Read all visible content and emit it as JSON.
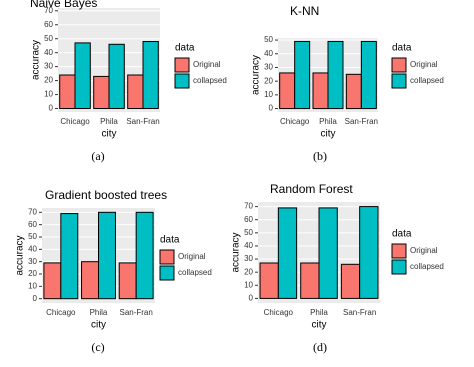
{
  "chart_data": [
    {
      "type": "bar",
      "title": "Naive Bayes",
      "x_label": "city",
      "y_label": "accuracy",
      "legend_title": "data",
      "caption": "(a)",
      "categories": [
        "Chicago",
        "Phila",
        "San-Fran"
      ],
      "series": [
        {
          "name": "Original",
          "color": "#F8766D",
          "values": [
            24,
            23,
            24
          ]
        },
        {
          "name": "collapsed",
          "color": "#00BFC4",
          "values": [
            47,
            46,
            48
          ]
        }
      ],
      "ylim": [
        -2.5,
        72
      ],
      "yticks": [
        0,
        10,
        20,
        30,
        40,
        50,
        60,
        70
      ],
      "grid": true,
      "legend": "right"
    },
    {
      "type": "bar",
      "title": "K-NN",
      "x_label": "city",
      "y_label": "accuracy",
      "legend_title": "data",
      "caption": "(b)",
      "categories": [
        "Chicago",
        "Phila",
        "San-Fran"
      ],
      "series": [
        {
          "name": "Original",
          "color": "#F8766D",
          "values": [
            26,
            26,
            25
          ]
        },
        {
          "name": "collapsed",
          "color": "#00BFC4",
          "values": [
            49,
            49,
            49
          ]
        }
      ],
      "ylim": [
        -2.5,
        51.5
      ],
      "yticks": [
        0,
        10,
        20,
        30,
        40,
        50
      ],
      "grid": true,
      "legend": "right"
    },
    {
      "type": "bar",
      "title": "Gradient boosted trees",
      "x_label": "city",
      "y_label": "accuracy",
      "legend_title": "data",
      "caption": "(c)",
      "categories": [
        "Chicago",
        "Phila",
        "San-Fran"
      ],
      "series": [
        {
          "name": "Original",
          "color": "#F8766D",
          "values": [
            29,
            30,
            29
          ]
        },
        {
          "name": "collapsed",
          "color": "#00BFC4",
          "values": [
            69,
            70,
            70
          ]
        }
      ],
      "ylim": [
        -3.5,
        73.5
      ],
      "yticks": [
        0,
        10,
        20,
        30,
        40,
        50,
        60,
        70
      ],
      "grid": true,
      "legend": "right"
    },
    {
      "type": "bar",
      "title": "Random Forest",
      "x_label": "city",
      "y_label": "accuracy",
      "legend_title": "data",
      "caption": "(d)",
      "categories": [
        "Chicago",
        "Phila",
        "San-Fran"
      ],
      "series": [
        {
          "name": "Original",
          "color": "#F8766D",
          "values": [
            27,
            27,
            26
          ]
        },
        {
          "name": "collapsed",
          "color": "#00BFC4",
          "values": [
            69,
            69,
            70
          ]
        }
      ],
      "ylim": [
        -3.5,
        73.5
      ],
      "yticks": [
        0,
        10,
        20,
        30,
        40,
        50,
        60,
        70
      ],
      "grid": true,
      "legend": "right"
    }
  ]
}
